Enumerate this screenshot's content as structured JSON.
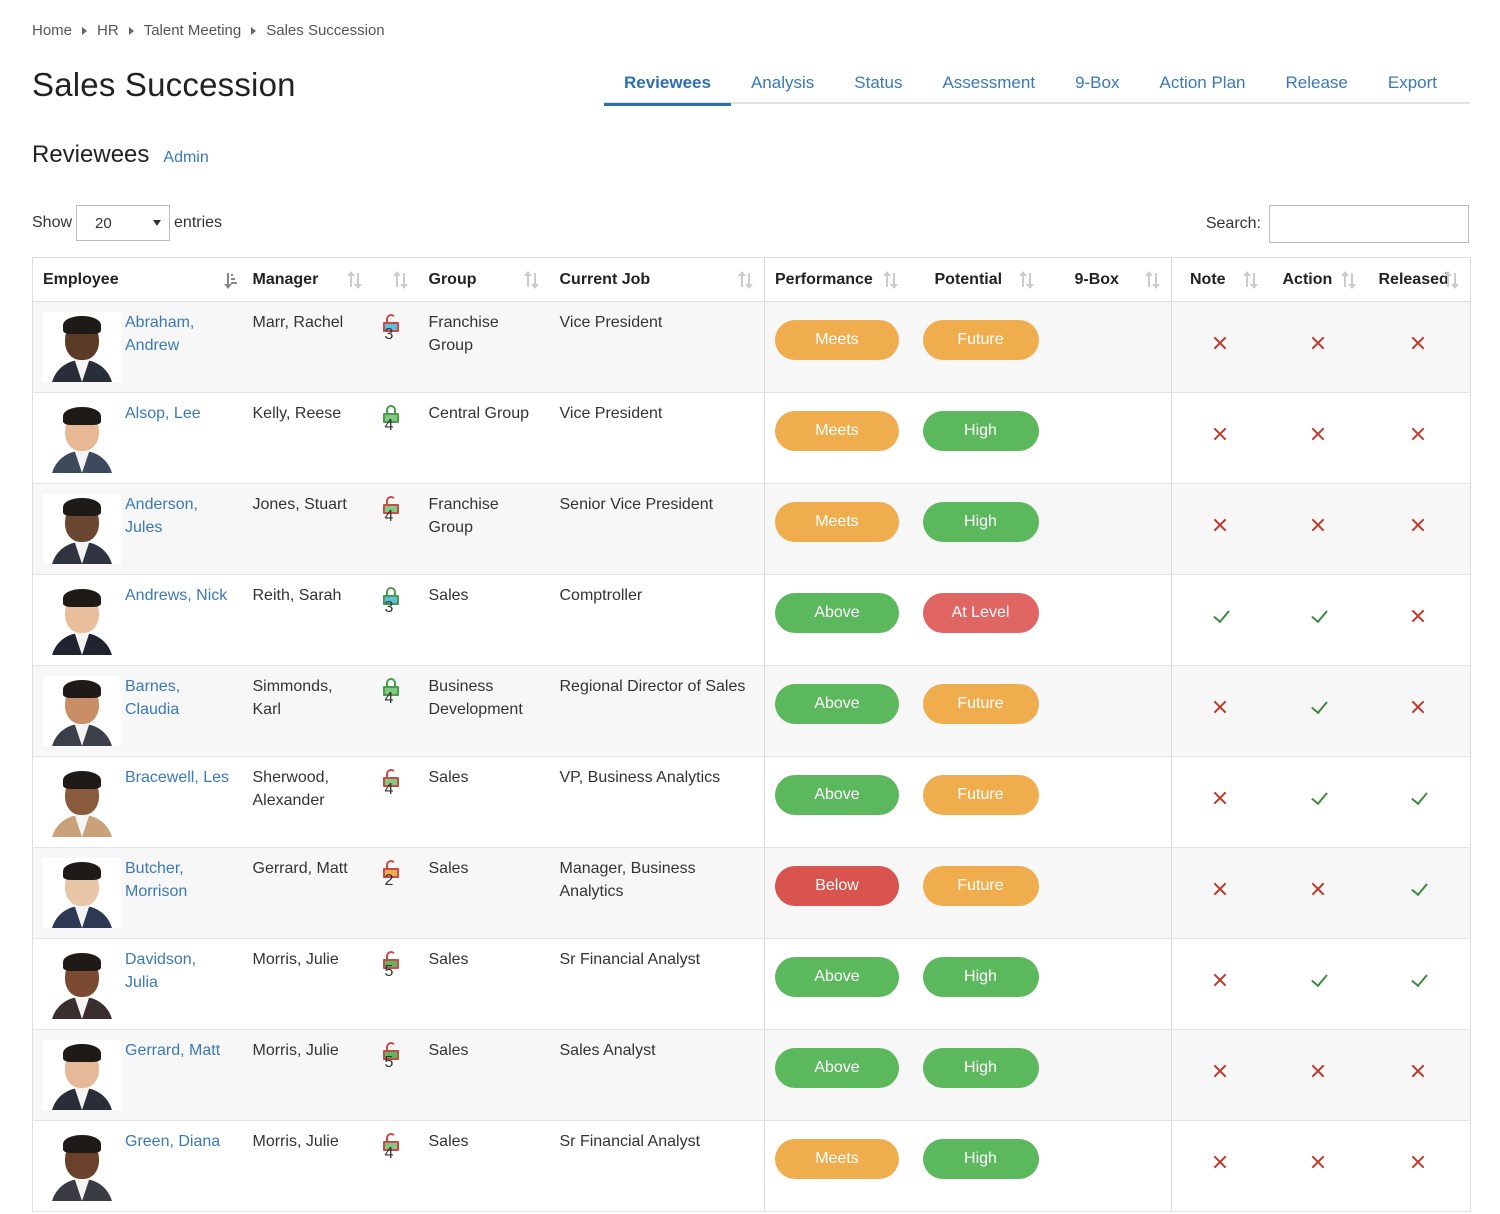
{
  "breadcrumb": [
    "Home",
    "HR",
    "Talent Meeting",
    "Sales Succession"
  ],
  "page_title": "Sales Succession",
  "tabs": [
    {
      "label": "Reviewees",
      "active": true
    },
    {
      "label": "Analysis",
      "active": false
    },
    {
      "label": "Status",
      "active": false
    },
    {
      "label": "Assessment",
      "active": false
    },
    {
      "label": "9-Box",
      "active": false
    },
    {
      "label": "Action Plan",
      "active": false
    },
    {
      "label": "Release",
      "active": false
    },
    {
      "label": "Export",
      "active": false
    }
  ],
  "section": {
    "title": "Reviewees",
    "admin_link": "Admin"
  },
  "entries": {
    "show_label": "Show",
    "selected": "20",
    "suffix": "entries"
  },
  "search": {
    "label": "Search:",
    "value": ""
  },
  "table": {
    "columns": [
      "Employee",
      "Manager",
      "",
      "Group",
      "Current Job",
      "Performance",
      "Potential",
      "9-Box",
      "Note",
      "Action",
      "Released"
    ],
    "rows": [
      {
        "name": "Abraham, Andrew",
        "manager": "Marr, Rachel",
        "lock": "unlocked",
        "group": "Franchise Group",
        "job": "Vice President",
        "performance": "Meets",
        "potential": "Future",
        "box": "3",
        "note": "no",
        "action": "no",
        "released": "no"
      },
      {
        "name": "Alsop, Lee",
        "manager": "Kelly, Reese",
        "lock": "locked",
        "group": "Central Group",
        "job": "Vice President",
        "performance": "Meets",
        "potential": "High",
        "box": "4",
        "note": "no",
        "action": "no",
        "released": "no"
      },
      {
        "name": "Anderson, Jules",
        "manager": "Jones, Stuart",
        "lock": "unlocked",
        "group": "Franchise Group",
        "job": "Senior Vice President",
        "performance": "Meets",
        "potential": "High",
        "box": "4",
        "note": "no",
        "action": "no",
        "released": "no"
      },
      {
        "name": "Andrews, Nick",
        "manager": "Reith, Sarah",
        "lock": "locked",
        "group": "Sales",
        "job": "Comptroller",
        "performance": "Above",
        "potential": "At Level",
        "box": "3",
        "note": "yes",
        "action": "yes",
        "released": "no"
      },
      {
        "name": "Barnes, Claudia",
        "manager": "Simmonds, Karl",
        "lock": "locked",
        "group": "Business Development",
        "job": "Regional Director of Sales",
        "performance": "Above",
        "potential": "Future",
        "box": "4",
        "note": "no",
        "action": "yes",
        "released": "no"
      },
      {
        "name": "Bracewell, Les",
        "manager": "Sherwood, Alexander",
        "lock": "unlocked",
        "group": "Sales",
        "job": "VP, Business Analytics",
        "performance": "Above",
        "potential": "Future",
        "box": "4",
        "note": "no",
        "action": "yes",
        "released": "yes"
      },
      {
        "name": "Butcher, Morrison",
        "manager": "Gerrard, Matt",
        "lock": "unlocked",
        "group": "Sales",
        "job": "Manager, Business Analytics",
        "performance": "Below",
        "potential": "Future",
        "box": "2",
        "note": "no",
        "action": "no",
        "released": "yes"
      },
      {
        "name": "Davidson, Julia",
        "manager": "Morris, Julie",
        "lock": "unlocked",
        "group": "Sales",
        "job": "Sr Financial Analyst",
        "performance": "Above",
        "potential": "High",
        "box": "5",
        "note": "no",
        "action": "yes",
        "released": "yes"
      },
      {
        "name": "Gerrard, Matt",
        "manager": "Morris, Julie",
        "lock": "unlocked",
        "group": "Sales",
        "job": "Sales Analyst",
        "performance": "Above",
        "potential": "High",
        "box": "5",
        "note": "no",
        "action": "no",
        "released": "no"
      },
      {
        "name": "Green, Diana",
        "manager": "Morris, Julie",
        "lock": "unlocked",
        "group": "Sales",
        "job": "Sr Financial Analyst",
        "performance": "Meets",
        "potential": "High",
        "box": "4",
        "note": "no",
        "action": "no",
        "released": "no"
      }
    ]
  },
  "colors": {
    "link": "#3a79b7",
    "meets": "#f0ad4e",
    "above": "#5cb85c",
    "below": "#d9534f",
    "future": "#f0ad4e",
    "high": "#5cb85c",
    "at_level": "#e06663",
    "box_2": "#f0ad4e",
    "box_3": "#5bc0de",
    "box_4": "#82ca82",
    "box_5": "#5cb85c",
    "lock_unlocked": "#c94b47",
    "lock_locked": "#4c9a4c"
  },
  "icons": {
    "lock_unlocked": "unlock-icon",
    "lock_locked": "lock-icon",
    "no": "x-icon",
    "yes": "check-icon"
  }
}
